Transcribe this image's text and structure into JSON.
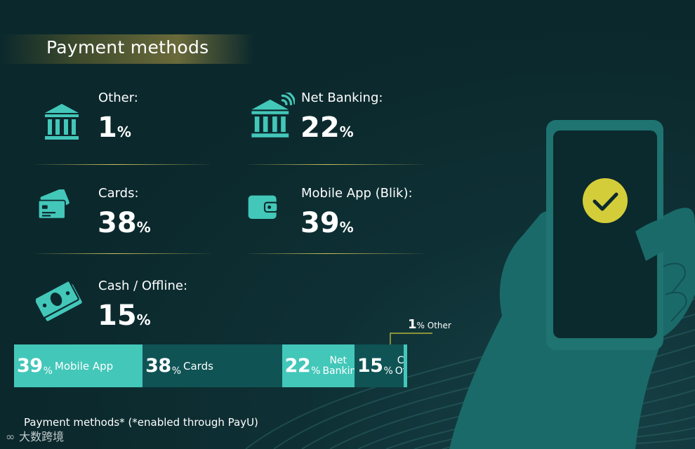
{
  "title": "Payment methods",
  "items": [
    {
      "icon": "bank-icon",
      "label": "Other:",
      "value": "1",
      "unit": "%"
    },
    {
      "icon": "net-banking-icon",
      "label": "Net Banking:",
      "value": "22",
      "unit": "%"
    },
    {
      "icon": "credit-cards-icon",
      "label": "Cards:",
      "value": "38",
      "unit": "%"
    },
    {
      "icon": "wallet-icon",
      "label": "Mobile App (Blik):",
      "value": "39",
      "unit": "%"
    },
    {
      "icon": "cash-icon",
      "label": "Cash / Offline:",
      "value": "15",
      "unit": "%"
    }
  ],
  "chart_data": {
    "type": "bar",
    "orientation": "horizontal-stacked-100",
    "title": "Payment methods",
    "categories": [
      "Mobile App",
      "Cards",
      "Net Banking",
      "Cash Offilne",
      "Other"
    ],
    "values": [
      39,
      38,
      22,
      15,
      1
    ],
    "unit": "%",
    "segments": [
      {
        "value": "39",
        "unit": "%",
        "label": "Mobile App",
        "color": "#43c7b9"
      },
      {
        "value": "38",
        "unit": "%",
        "label": "Cards",
        "color": "#0f5355"
      },
      {
        "value": "22",
        "unit": "%",
        "label_line1": "Net",
        "label_line2": "Banking",
        "color": "#43c7b9"
      },
      {
        "value": "15",
        "unit": "%",
        "label_line1": "Cash",
        "label_line2": "Offilne",
        "color": "#0f5355"
      },
      {
        "value": "1",
        "unit": "%",
        "label": "Other",
        "color": "#43c7b9"
      }
    ]
  },
  "colors": {
    "background": "#0c2a2e",
    "accent_teal": "#43c7b9",
    "dark_teal": "#0f5355",
    "gold": "#d4cd3a",
    "divider": "#c9c25a"
  },
  "footnote": "Payment methods* (*enabled through PayU)",
  "watermark": "大数跨境"
}
